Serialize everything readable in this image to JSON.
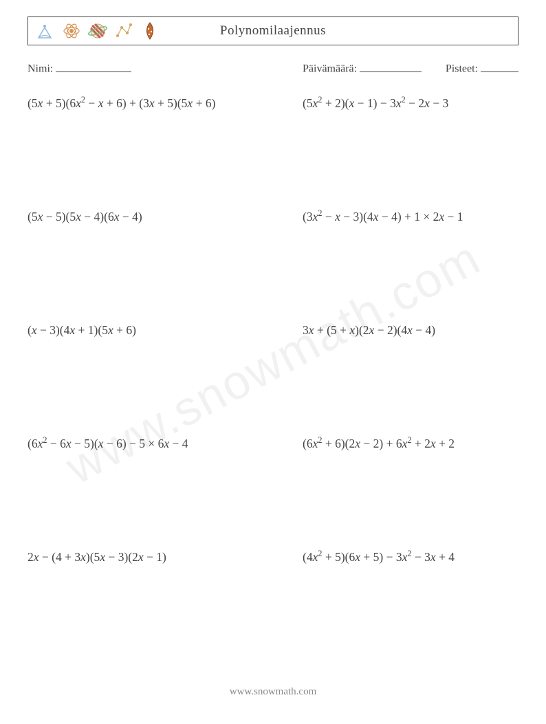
{
  "title": "Polynomilaajennus",
  "labels": {
    "name": "Nimi:",
    "date": "Päivämäärä:",
    "score": "Pisteet:"
  },
  "icons": {
    "i1_color": "#94b8e0",
    "i2_color": "#d89050",
    "i3_color": "#7eb87e",
    "i4_color": "#d0a860",
    "i5_color": "#d8b050"
  },
  "footer": "www.snowmath.com",
  "watermark": "www.snowmath.com",
  "problems": [
    {
      "left": "(5<i>x</i> + 5)(6<i>x</i><sup>2</sup> − <i>x</i> + 6) + (3<i>x</i> + 5)(5<i>x</i> + 6)",
      "right": "(5<i>x</i><sup>2</sup> + 2)(<i>x</i> − 1) − 3<i>x</i><sup>2</sup> − 2<i>x</i> − 3"
    },
    {
      "left": "(5<i>x</i> − 5)(5<i>x</i> − 4)(6<i>x</i> − 4)",
      "right": "(3<i>x</i><sup>2</sup> − <i>x</i> − 3)(4<i>x</i> − 4) + 1 × 2<i>x</i> − 1"
    },
    {
      "left": "(<i>x</i> − 3)(4<i>x</i> + 1)(5<i>x</i> + 6)",
      "right": "3<i>x</i> + (5 + <i>x</i>)(2<i>x</i> − 2)(4<i>x</i> − 4)"
    },
    {
      "left": "(6<i>x</i><sup>2</sup> − 6<i>x</i> − 5)(<i>x</i> − 6) − 5 × 6<i>x</i> − 4",
      "right": "(6<i>x</i><sup>2</sup> + 6)(2<i>x</i> − 2) + 6<i>x</i><sup>2</sup> + 2<i>x</i> + 2"
    },
    {
      "left": "2<i>x</i> − (4 + 3<i>x</i>)(5<i>x</i> − 3)(2<i>x</i> − 1)",
      "right": "(4<i>x</i><sup>2</sup> + 5)(6<i>x</i> + 5) − 3<i>x</i><sup>2</sup> − 3<i>x</i> + 4"
    }
  ]
}
